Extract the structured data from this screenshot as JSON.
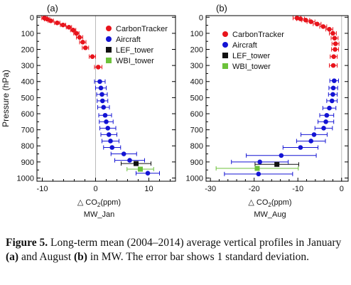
{
  "caption": {
    "label": "Figure 5.",
    "text_1": " Long-term mean (2004–2014) average vertical profiles in January ",
    "panel_a": "(a)",
    "text_2": " and August ",
    "panel_b": "(b)",
    "text_3": " in MW. The error bar shows 1 standard deviation."
  },
  "chart_data": [
    {
      "type": "scatter",
      "panel_label": "(a)",
      "xlabel_symbol": "△",
      "xlabel_text": "CO",
      "xlabel_sub": "2",
      "xlabel_unit": "(ppm)",
      "site": "MW_Jan",
      "ylabel": "Pressure (hPa)",
      "xlim": [
        -11,
        15
      ],
      "ylim": [
        1020,
        -10
      ],
      "y_reversed": true,
      "xticks": [
        -10,
        0,
        10
      ],
      "yticks": [
        0,
        100,
        200,
        300,
        400,
        500,
        600,
        700,
        800,
        900,
        1000
      ],
      "legend": [
        {
          "name": "CarbonTracker",
          "color": "#e8141c",
          "marker": "circle"
        },
        {
          "name": "Aircraft",
          "color": "#1414d4",
          "marker": "circle"
        },
        {
          "name": "LEF_tower",
          "color": "#111111",
          "marker": "square"
        },
        {
          "name": "WBI_tower",
          "color": "#6cc23a",
          "marker": "square"
        }
      ],
      "series": [
        {
          "name": "CarbonTracker",
          "color": "#e8141c",
          "points": [
            [
              -9.6,
              5
            ],
            [
              -9.1,
              12
            ],
            [
              -8.4,
              22
            ],
            [
              -7.2,
              35
            ],
            [
              -6.1,
              48
            ],
            [
              -5.0,
              62
            ],
            [
              -4.2,
              80
            ],
            [
              -3.6,
              100
            ],
            [
              -3.0,
              125
            ],
            [
              -2.4,
              155
            ],
            [
              -1.9,
              190
            ],
            [
              -0.6,
              245
            ],
            [
              0.5,
              310
            ]
          ],
          "err": [
            0.5,
            0.5,
            0.5,
            0.5,
            0.5,
            0.5,
            0.5,
            0.5,
            0.6,
            0.6,
            0.6,
            0.6,
            0.7
          ]
        },
        {
          "name": "Aircraft",
          "color": "#1414d4",
          "points": [
            [
              0.8,
              400
            ],
            [
              1.0,
              440
            ],
            [
              1.2,
              480
            ],
            [
              1.3,
              520
            ],
            [
              1.5,
              560
            ],
            [
              1.8,
              610
            ],
            [
              2.0,
              650
            ],
            [
              2.3,
              690
            ],
            [
              2.5,
              730
            ],
            [
              2.8,
              770
            ],
            [
              3.1,
              810
            ],
            [
              5.3,
              850
            ],
            [
              6.4,
              890
            ],
            [
              9.8,
              970
            ]
          ],
          "err": [
            1.0,
            1.0,
            1.0,
            1.0,
            1.1,
            1.2,
            1.3,
            1.5,
            1.5,
            1.6,
            1.6,
            2.4,
            2.8,
            2.2
          ]
        },
        {
          "name": "LEF_tower",
          "color": "#111111",
          "points": [
            [
              7.6,
              910
            ]
          ],
          "err": [
            2.8
          ]
        },
        {
          "name": "WBI_tower",
          "color": "#6cc23a",
          "points": [
            [
              8.4,
              945
            ]
          ],
          "err": [
            2.5
          ]
        }
      ]
    },
    {
      "type": "scatter",
      "panel_label": "(b)",
      "xlabel_symbol": "△",
      "xlabel_text": "CO",
      "xlabel_sub": "2",
      "xlabel_unit": "(ppm)",
      "site": "MW_Aug",
      "xlim": [
        -31,
        1.5
      ],
      "ylim": [
        1020,
        -10
      ],
      "y_reversed": true,
      "xticks": [
        -30,
        -20,
        -10,
        0
      ],
      "yticks": [
        0,
        100,
        200,
        300,
        400,
        500,
        600,
        700,
        800,
        900,
        1000
      ],
      "legend": [
        {
          "name": "CarbonTracker",
          "color": "#e8141c",
          "marker": "circle"
        },
        {
          "name": "Aircraft",
          "color": "#1414d4",
          "marker": "circle"
        },
        {
          "name": "LEF_tower",
          "color": "#111111",
          "marker": "square"
        },
        {
          "name": "WBI_tower",
          "color": "#6cc23a",
          "marker": "square"
        }
      ],
      "series": [
        {
          "name": "CarbonTracker",
          "color": "#e8141c",
          "points": [
            [
              -10.2,
              5
            ],
            [
              -9.4,
              10
            ],
            [
              -8.2,
              18
            ],
            [
              -7.0,
              28
            ],
            [
              -5.6,
              42
            ],
            [
              -4.2,
              58
            ],
            [
              -2.8,
              75
            ],
            [
              -2.0,
              100
            ],
            [
              -1.6,
              130
            ],
            [
              -1.4,
              165
            ],
            [
              -1.5,
              200
            ],
            [
              -1.8,
              245
            ],
            [
              -1.9,
              300
            ]
          ],
          "err": [
            0.9,
            0.9,
            0.9,
            0.9,
            0.9,
            0.8,
            0.8,
            0.8,
            0.8,
            0.8,
            0.8,
            0.8,
            0.9
          ]
        },
        {
          "name": "Aircraft",
          "color": "#1414d4",
          "points": [
            [
              -1.7,
              395
            ],
            [
              -1.9,
              440
            ],
            [
              -2.0,
              480
            ],
            [
              -2.2,
              520
            ],
            [
              -2.8,
              565
            ],
            [
              -3.4,
              610
            ],
            [
              -3.6,
              650
            ],
            [
              -4.1,
              690
            ],
            [
              -6.3,
              730
            ],
            [
              -7.0,
              770
            ],
            [
              -9.4,
              810
            ],
            [
              -13.8,
              860
            ],
            [
              -18.7,
              900
            ],
            [
              -19.0,
              975
            ]
          ],
          "err": [
            1.0,
            1.0,
            1.0,
            1.2,
            1.5,
            1.6,
            1.8,
            2.0,
            3.0,
            3.3,
            4.0,
            8.0,
            6.5,
            7.8
          ]
        },
        {
          "name": "LEF_tower",
          "color": "#111111",
          "points": [
            [
              -14.8,
              915
            ]
          ],
          "err": [
            5.0
          ]
        },
        {
          "name": "WBI_tower",
          "color": "#6cc23a",
          "points": [
            [
              -19.3,
              940
            ]
          ],
          "err": [
            9.4
          ]
        }
      ]
    }
  ]
}
